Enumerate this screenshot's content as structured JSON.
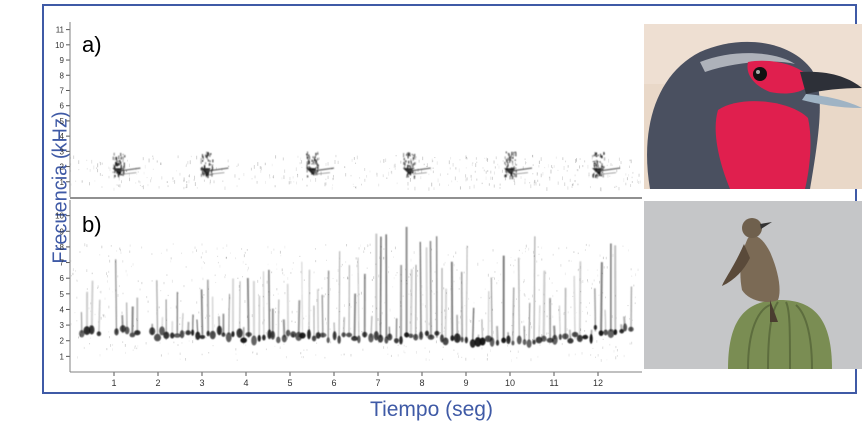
{
  "axes": {
    "ylabel": "Frecuencia (kHz)",
    "xlabel": "Tiempo (seg)"
  },
  "chart_data": [
    {
      "type": "heatmap",
      "panel_label": "a)",
      "xlim": [
        0,
        13
      ],
      "ylim": [
        0,
        11.5
      ],
      "yticks": [
        1,
        2,
        3,
        4,
        5,
        6,
        7,
        8,
        9,
        10,
        11
      ],
      "calls": [
        {
          "t": 1.1,
          "f_low": 1.4,
          "f_high": 3.0
        },
        {
          "t": 3.1,
          "f_low": 1.4,
          "f_high": 3.0
        },
        {
          "t": 5.5,
          "f_low": 1.4,
          "f_high": 3.0
        },
        {
          "t": 7.7,
          "f_low": 1.4,
          "f_high": 3.0
        },
        {
          "t": 10.0,
          "f_low": 1.4,
          "f_high": 3.0
        },
        {
          "t": 12.0,
          "f_low": 1.4,
          "f_high": 3.0
        }
      ]
    },
    {
      "type": "heatmap",
      "panel_label": "b)",
      "xlim": [
        0,
        13
      ],
      "ylim": [
        0,
        11
      ],
      "yticks": [
        1,
        2,
        3,
        4,
        5,
        6,
        7,
        8,
        9,
        10
      ],
      "xticks": [
        1,
        2,
        3,
        4,
        5,
        6,
        7,
        8,
        9,
        10,
        11,
        12
      ],
      "segments": [
        {
          "t0": 0.2,
          "t1": 0.7,
          "f_low": 1.9,
          "f_high": 6.0
        },
        {
          "t0": 1.0,
          "t1": 1.6,
          "f_low": 1.9,
          "f_high": 7.5
        },
        {
          "t0": 1.8,
          "t1": 3.9,
          "f_low": 1.8,
          "f_high": 6.0
        },
        {
          "t0": 3.9,
          "t1": 4.8,
          "f_low": 1.6,
          "f_high": 9.0
        },
        {
          "t0": 4.8,
          "t1": 5.7,
          "f_low": 1.6,
          "f_high": 8.0
        },
        {
          "t0": 5.7,
          "t1": 7.0,
          "f_low": 1.6,
          "f_high": 10.0
        },
        {
          "t0": 7.0,
          "t1": 8.5,
          "f_low": 1.6,
          "f_high": 10.0
        },
        {
          "t0": 8.5,
          "t1": 10.6,
          "f_low": 1.4,
          "f_high": 9.0
        },
        {
          "t0": 10.6,
          "t1": 11.9,
          "f_low": 1.5,
          "f_high": 8.0
        },
        {
          "t0": 11.9,
          "t1": 12.8,
          "f_low": 2.0,
          "f_high": 9.0
        }
      ]
    }
  ],
  "photos": [
    {
      "icon": "red-throated-bird-photo",
      "colors": {
        "sky": "#e9d8c8",
        "body": "#4a5060",
        "throat": "#e01f4e",
        "beak": "#9fb3c4"
      }
    },
    {
      "icon": "bird-on-cactus-photo",
      "colors": {
        "sky": "#c5c6c8",
        "bird": "#7b6a55",
        "cactus": "#7a8d53"
      }
    }
  ],
  "colors": {
    "frame": "#3f5aa6",
    "ink": "#1a1a1a",
    "grid": "#808080"
  }
}
